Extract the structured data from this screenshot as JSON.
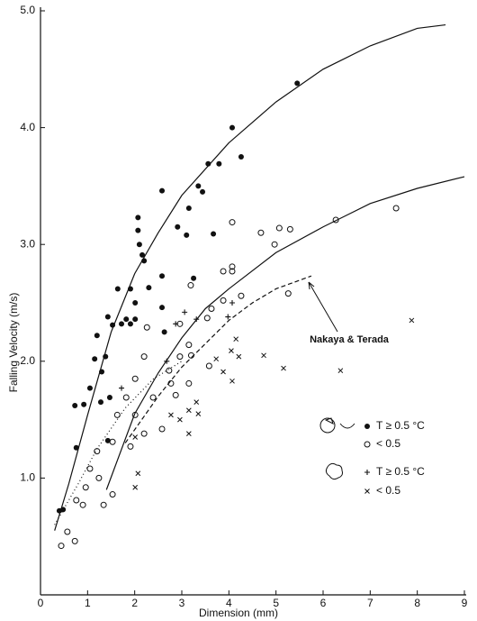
{
  "chart_data": {
    "type": "scatter",
    "xlabel": "Dimension (mm)",
    "ylabel": "Falling Velocity (m/s)",
    "annotation": "Nakaya & Terada",
    "xlim": [
      0,
      9
    ],
    "ylim": [
      0,
      5
    ],
    "xticks": [
      0,
      1,
      2,
      3,
      4,
      5,
      6,
      7,
      8,
      9
    ],
    "yticks": [
      {
        "value": 1,
        "label": "1.0"
      },
      {
        "value": 2,
        "label": "2.0"
      },
      {
        "value": 3,
        "label": "3.0"
      },
      {
        "value": 4,
        "label": "4.0"
      },
      {
        "value": 5,
        "label": "5.0"
      }
    ],
    "series": [
      {
        "name": "T ≥ 0.5 °C",
        "marker": "filled-circle",
        "color": "#111",
        "x": [
          5.45,
          4.07,
          4.26,
          3.79,
          3.56,
          3.35,
          3.44,
          2.58,
          3.15,
          2.91,
          2.07,
          2.07,
          2.1,
          2.16,
          2.2,
          3.1,
          3.67,
          3.25,
          1.64,
          1.91,
          2.3,
          2.58,
          2.01,
          1.43,
          1.82,
          2.01,
          1.91,
          1.72,
          1.53,
          1.2,
          1.38,
          1.15,
          1.3,
          1.05,
          0.73,
          0.92,
          1.28,
          1.47,
          1.43,
          0.76,
          0.48,
          0.4,
          2.58,
          2.63
        ],
        "values": [
          4.38,
          4.0,
          3.75,
          3.69,
          3.69,
          3.5,
          3.45,
          3.46,
          3.31,
          3.15,
          3.23,
          3.12,
          3.0,
          2.91,
          2.86,
          3.08,
          3.09,
          2.71,
          2.62,
          2.62,
          2.63,
          2.73,
          2.5,
          2.38,
          2.36,
          2.36,
          2.32,
          2.32,
          2.31,
          2.22,
          2.04,
          2.02,
          1.91,
          1.77,
          1.62,
          1.63,
          1.65,
          1.69,
          1.32,
          1.26,
          0.73,
          0.72,
          2.46,
          2.25
        ]
      },
      {
        "name": "< 0.5",
        "marker": "open-circle",
        "color": "#111",
        "x": [
          7.55,
          6.27,
          4.07,
          4.68,
          5.07,
          5.3,
          4.97,
          4.07,
          4.07,
          3.88,
          4.26,
          5.26,
          3.88,
          3.63,
          3.54,
          3.19,
          2.96,
          3.15,
          2.96,
          2.73,
          3.2,
          3.58,
          2.26,
          2.2,
          2.01,
          1.82,
          1.63,
          2.01,
          2.39,
          2.58,
          2.2,
          1.91,
          1.53,
          1.2,
          1.05,
          1.24,
          0.96,
          0.76,
          0.9,
          1.34,
          1.53,
          0.57,
          0.73,
          0.44,
          3.15,
          2.87,
          2.77
        ],
        "values": [
          3.31,
          3.21,
          3.19,
          3.1,
          3.14,
          3.13,
          3.0,
          2.81,
          2.77,
          2.77,
          2.56,
          2.58,
          2.52,
          2.45,
          2.37,
          2.65,
          2.32,
          2.14,
          2.04,
          1.92,
          2.05,
          1.96,
          2.29,
          2.04,
          1.85,
          1.69,
          1.54,
          1.54,
          1.69,
          1.42,
          1.38,
          1.27,
          1.31,
          1.23,
          1.08,
          1.0,
          0.92,
          0.81,
          0.77,
          0.77,
          0.86,
          0.54,
          0.46,
          0.42,
          1.81,
          1.71,
          1.81
        ]
      },
      {
        "name": "T ≥ 0.5 °C",
        "marker": "plus",
        "color": "#111",
        "x": [
          3.06,
          2.87,
          3.98,
          4.07,
          1.72,
          2.68,
          3.31
        ],
        "values": [
          2.42,
          2.32,
          2.38,
          2.5,
          1.77,
          2.0,
          2.36
        ]
      },
      {
        "name": "< 0.5",
        "marker": "cross",
        "color": "#111",
        "x": [
          7.88,
          4.15,
          4.05,
          4.21,
          4.74,
          3.73,
          3.88,
          4.07,
          5.16,
          6.37,
          3.31,
          3.15,
          3.35,
          2.77,
          2.96,
          3.15,
          2.01,
          2.07,
          2.01
        ],
        "values": [
          2.35,
          2.19,
          2.09,
          2.04,
          2.05,
          2.02,
          1.91,
          1.83,
          1.94,
          1.92,
          1.65,
          1.58,
          1.55,
          1.54,
          1.5,
          1.38,
          1.35,
          1.04,
          0.92
        ]
      },
      {
        "marker": "line",
        "style": "solid",
        "color": "#111",
        "x": [
          0.3,
          0.6,
          1,
          1.5,
          2,
          2.5,
          3,
          4,
          5,
          6,
          7,
          8,
          8.6
        ],
        "values": [
          0.55,
          0.95,
          1.54,
          2.25,
          2.75,
          3.1,
          3.42,
          3.87,
          4.22,
          4.5,
          4.7,
          4.85,
          4.88
        ]
      },
      {
        "marker": "line",
        "style": "solid",
        "color": "#111",
        "x": [
          1.4,
          2,
          2.5,
          3,
          3.5,
          4,
          5,
          6,
          7,
          8,
          9
        ],
        "values": [
          0.9,
          1.55,
          1.9,
          2.2,
          2.45,
          2.62,
          2.93,
          3.15,
          3.35,
          3.48,
          3.58
        ]
      },
      {
        "marker": "line",
        "style": "dashed",
        "color": "#111",
        "x": [
          1.8,
          2.5,
          3,
          3.5,
          4,
          4.5,
          5,
          5.75
        ],
        "values": [
          1.3,
          1.7,
          1.95,
          2.15,
          2.35,
          2.5,
          2.62,
          2.73
        ]
      },
      {
        "marker": "line",
        "style": "dotted",
        "color": "#111",
        "x": [
          0.3,
          0.8,
          1.2,
          1.8,
          2.4,
          3
        ],
        "values": [
          0.6,
          0.95,
          1.25,
          1.6,
          1.85,
          2.0
        ]
      }
    ]
  }
}
